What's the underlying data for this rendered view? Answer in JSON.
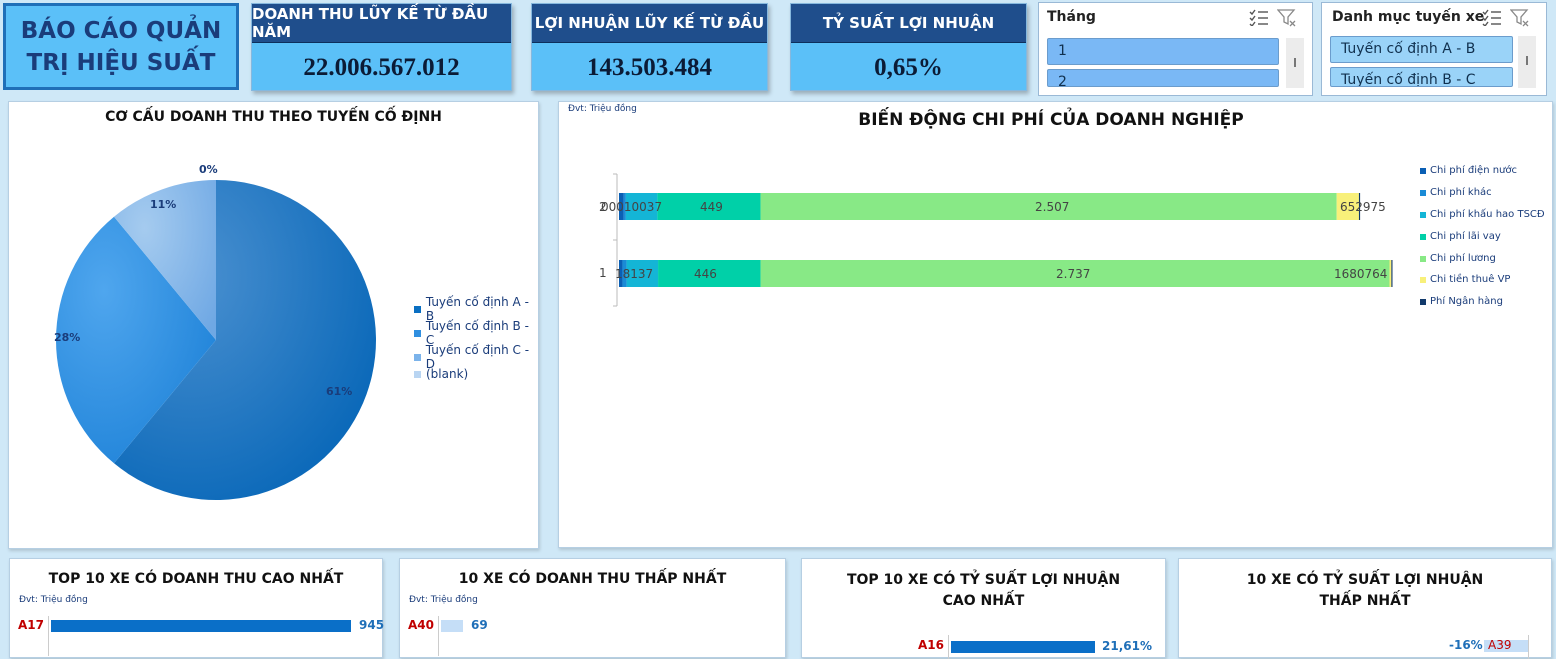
{
  "header": {
    "title": "BÁO CÁO QUẢN TRỊ HIỆU SUẤT",
    "kpis": [
      {
        "label": "DOANH THU LŨY KẾ TỪ ĐẦU NĂM",
        "value": "22.006.567.012"
      },
      {
        "label": "LỢI NHUẬN LŨY KẾ TỪ ĐẦU",
        "value": "143.503.484"
      },
      {
        "label": "TỶ SUẤT LỢI NHUẬN",
        "value": "0,65%"
      }
    ]
  },
  "slicers": {
    "month": {
      "title": "Tháng",
      "items": [
        "1",
        "2"
      ]
    },
    "route": {
      "title": "Danh mục tuyến xe",
      "items": [
        "Tuyến cố định A - B",
        "Tuyến cố định B - C"
      ]
    }
  },
  "pie_panel": {
    "title": "CƠ CẤU DOANH THU THEO TUYẾN CỐ ĐỊNH",
    "labels": {
      "a": "61%",
      "b": "28%",
      "c": "11%",
      "blank": "0%"
    },
    "legend": [
      "Tuyến cố định A - B",
      "Tuyến cố định B - C",
      "Tuyến cố định C - D",
      "(blank)"
    ],
    "colors": [
      "#0a6fc2",
      "#2f8fe0",
      "#7bb3ea",
      "#b9d5f2"
    ]
  },
  "cost_panel": {
    "unit": "Đvt: Triệu đồng",
    "title": "BIẾN ĐỘNG CHI PHÍ CỦA DOANH NGHIỆP",
    "category_labels": [
      "2",
      "1"
    ],
    "row2_labels": {
      "small": "00010037",
      "lai_vay": "449",
      "luong": "2.507",
      "thue": "652975"
    },
    "row1_labels": {
      "small": "18137",
      "lai_vay": "446",
      "luong": "2.737",
      "thue": "1680764"
    },
    "legend": [
      "Chi phí điện nước",
      "Chi phí khác",
      "Chi phí khấu hao TSCĐ",
      "Chi phí lãi vay",
      "Chi phí lương",
      "Chi tiền thuê VP",
      "Phí Ngân hàng"
    ],
    "colors": [
      "#0a5fb4",
      "#1a8bd6",
      "#14b5d6",
      "#00d0a8",
      "#88e986",
      "#f8f07a",
      "#123a6b"
    ]
  },
  "chart_data": [
    {
      "type": "pie",
      "title": "CƠ CẤU DOANH THU THEO TUYẾN CỐ ĐỊNH",
      "categories": [
        "Tuyến cố định A - B",
        "Tuyến cố định B - C",
        "Tuyến cố định C - D",
        "(blank)"
      ],
      "values": [
        61,
        28,
        11,
        0
      ],
      "legend": "right"
    },
    {
      "type": "bar",
      "orientation": "horizontal",
      "stacked": true,
      "title": "BIẾN ĐỘNG CHI PHÍ CỦA DOANH NGHIỆP",
      "categories": [
        "2",
        "1"
      ],
      "series": [
        {
          "name": "Chi phí điện nước",
          "values": [
            20,
            15
          ]
        },
        {
          "name": "Chi phí khác",
          "values": [
            10,
            18
          ]
        },
        {
          "name": "Chi phí khấu hao TSCĐ",
          "values": [
            137,
            137
          ]
        },
        {
          "name": "Chi phí lãi vay",
          "values": [
            449,
            446
          ]
        },
        {
          "name": "Chi phí lương",
          "values": [
            2507,
            2737
          ]
        },
        {
          "name": "Chi tiền thuê VP",
          "values": [
            97,
            8
          ]
        },
        {
          "name": "Phí Ngân hàng",
          "values": [
            5,
            5
          ]
        }
      ],
      "legend": "right"
    },
    {
      "type": "bar",
      "orientation": "horizontal",
      "title": "TOP 10 XE CÓ DOANH THU CAO NHẤT",
      "categories": [
        "A17"
      ],
      "values": [
        945
      ]
    },
    {
      "type": "bar",
      "orientation": "horizontal",
      "title": "10 XE CÓ DOANH THU THẤP NHẤT",
      "categories": [
        "A40"
      ],
      "values": [
        69
      ]
    },
    {
      "type": "bar",
      "orientation": "horizontal",
      "title": "TOP 10 XE CÓ TỶ SUẤT LỢI NHUẬN CAO NHẤT",
      "categories": [
        "A16"
      ],
      "values": [
        21.61
      ]
    },
    {
      "type": "bar",
      "orientation": "horizontal",
      "title": "10 XE CÓ TỶ SUẤT LỢI NHUẬN THẤP NHẤT",
      "categories": [
        "A39"
      ],
      "values": [
        -16
      ]
    }
  ],
  "bottom": {
    "top_rev": {
      "title": "TOP 10 XE CÓ DOANH THU CAO NHẤT",
      "unit": "Đvt: Triệu đồng",
      "label": "A17",
      "value": "945"
    },
    "low_rev": {
      "title": "10 XE CÓ DOANH THU THẤP NHẤT",
      "unit": "Đvt: Triệu đồng",
      "label": "A40",
      "value": "69"
    },
    "top_margin": {
      "title_1": "TOP 10 XE CÓ TỶ SUẤT LỢI NHUẬN",
      "title_2": "CAO NHẤT",
      "label": "A16",
      "value": "21,61%"
    },
    "low_margin": {
      "title_1": "10 XE CÓ TỶ SUẤT LỢI NHUẬN",
      "title_2": "THẤP NHẤT",
      "label": "A39",
      "value": "-16%"
    }
  }
}
